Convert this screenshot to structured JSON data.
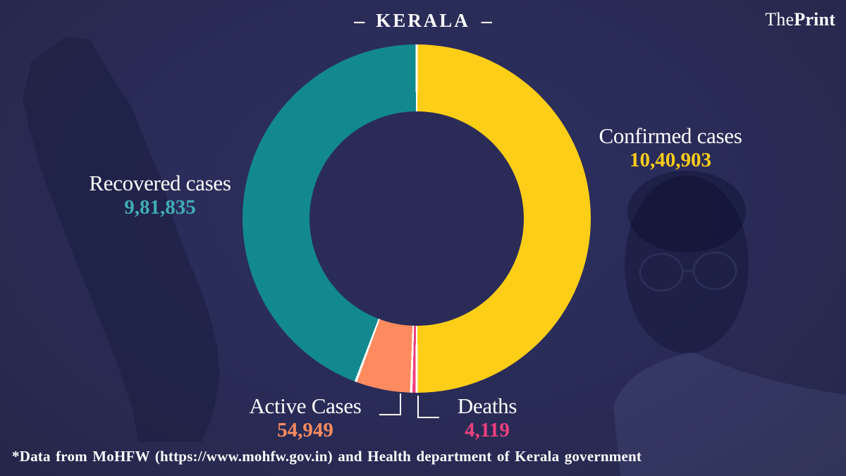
{
  "header": {
    "dash": "–",
    "title": "KERALA"
  },
  "brand": {
    "part1": "The",
    "part2": "Print"
  },
  "callouts": {
    "confirmed": {
      "label": "Confirmed cases",
      "value": "10,40,903",
      "color": "#fccd17"
    },
    "recovered": {
      "label": "Recovered cases",
      "value": "9,81,835",
      "color": "#41adb3"
    },
    "active": {
      "label": "Active Cases",
      "value": "54,949",
      "color": "#fd8b5f"
    },
    "deaths": {
      "label": "Deaths",
      "value": "4,119",
      "color": "#ef407e"
    }
  },
  "footer": {
    "text": "*Data from MoHFW (https://www.mohfw.gov.in) and Health department of Kerala government"
  },
  "colors": {
    "background": "#292b56",
    "confirmed_yellow": "#fdce17",
    "recovered_teal": "#12898e",
    "active_orange": "#fd8b5f",
    "deaths_pink": "#ef407e",
    "text_white": "#fdfdfd"
  },
  "chart_data": {
    "type": "pie",
    "donut": true,
    "title": "KERALA",
    "labels": [
      "Confirmed cases",
      "Deaths",
      "Active Cases",
      "Recovered cases"
    ],
    "values": [
      1040903,
      4119,
      54949,
      981835
    ],
    "display_values": [
      "10,40,903",
      "4,119",
      "54,949",
      "9,81,835"
    ],
    "colors": [
      "#fdce17",
      "#ef407e",
      "#fd8b5f",
      "#12898e"
    ],
    "start_angle_deg": 0,
    "direction": "clockwise",
    "drawn_angles_deg": [
      [
        0,
        180
      ],
      [
        180,
        181.8
      ],
      [
        181.8,
        200.5
      ],
      [
        200.5,
        360
      ]
    ],
    "separator_color": "#ffffff",
    "separator_width_deg": 0.8,
    "hole_ratio": 0.308,
    "legend_position": "around-chart",
    "grid": false
  }
}
